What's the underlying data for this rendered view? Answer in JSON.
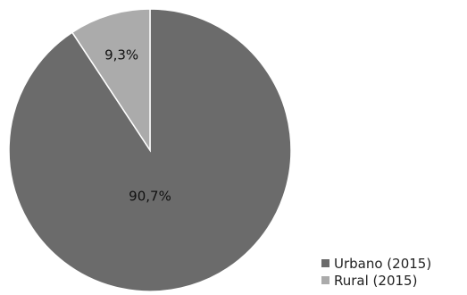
{
  "chart_data": {
    "type": "pie",
    "slices": [
      {
        "label": "Urbano (2015)",
        "value": 90.7,
        "display": "90,7%",
        "color": "#6b6b6b"
      },
      {
        "label": "Rural (2015)",
        "value": 9.3,
        "display": "9,3%",
        "color": "#ababab"
      }
    ],
    "legend_position": "bottom-right",
    "start": "top, clockwise"
  }
}
